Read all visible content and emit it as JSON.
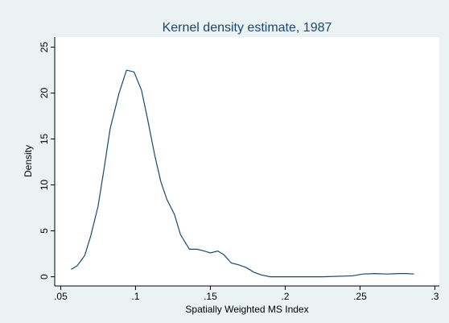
{
  "chart_data": {
    "type": "line",
    "title": "Kernel density estimate, 1987",
    "xlabel": "Spatially Weighted MS Index",
    "ylabel": "Density",
    "color": "#1a476f",
    "grid": false,
    "x": [
      0.057,
      0.061,
      0.066,
      0.07,
      0.075,
      0.079,
      0.083,
      0.089,
      0.094,
      0.099,
      0.104,
      0.108,
      0.113,
      0.117,
      0.121,
      0.126,
      0.13,
      0.136,
      0.141,
      0.146,
      0.15,
      0.155,
      0.159,
      0.164,
      0.169,
      0.174,
      0.179,
      0.184,
      0.19,
      0.2,
      0.225,
      0.245,
      0.252,
      0.26,
      0.268,
      0.276,
      0.281,
      0.286
    ],
    "values": [
      0.8,
      1.2,
      2.3,
      4.4,
      7.7,
      11.8,
      16.1,
      20.0,
      22.5,
      22.3,
      20.3,
      17.2,
      13.1,
      10.3,
      8.4,
      6.8,
      4.6,
      3.0,
      3.0,
      2.8,
      2.6,
      2.8,
      2.4,
      1.5,
      1.3,
      1.0,
      0.5,
      0.2,
      0.0,
      0.0,
      0.0,
      0.1,
      0.3,
      0.35,
      0.3,
      0.35,
      0.35,
      0.3
    ],
    "xlim": [
      0.046,
      0.303
    ],
    "ylim": [
      -1,
      26.1
    ],
    "xticks": [
      {
        "value": 0.05,
        "label": ".05"
      },
      {
        "value": 0.1,
        "label": ".1"
      },
      {
        "value": 0.15,
        "label": ".15"
      },
      {
        "value": 0.2,
        "label": ".2"
      },
      {
        "value": 0.25,
        "label": ".25"
      },
      {
        "value": 0.3,
        "label": ".3"
      }
    ],
    "yticks": [
      0,
      5,
      10,
      15,
      20,
      25
    ]
  }
}
